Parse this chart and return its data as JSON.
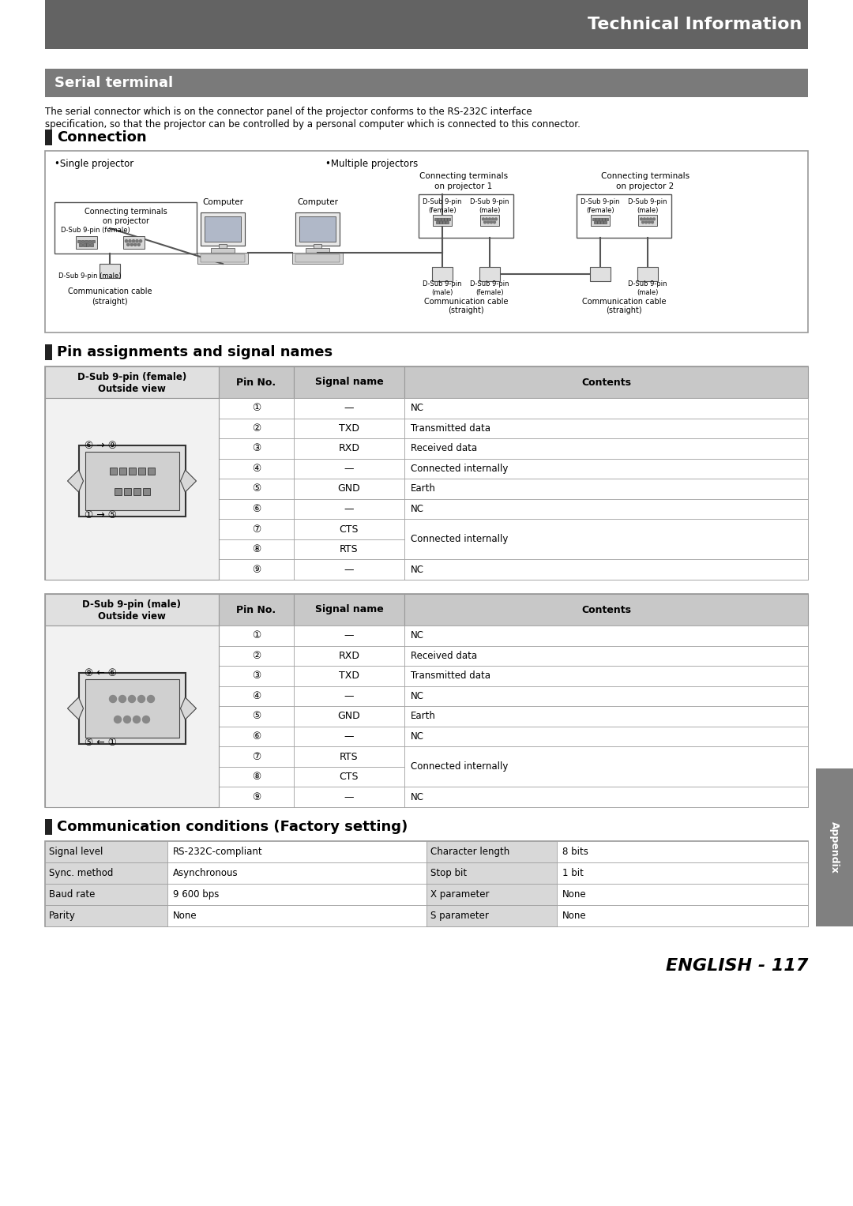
{
  "title_header": "Technical Information",
  "section1_title": "Serial terminal",
  "intro_line1": "The serial connector which is on the connector panel of the projector conforms to the RS-232C interface",
  "intro_line2": "specification, so that the projector can be controlled by a personal computer which is connected to this connector.",
  "connection_title": "Connection",
  "pin_title": "Pin assignments and signal names",
  "comm_title": "Communication conditions (Factory setting)",
  "female_table_title": "D-Sub 9-pin (female)\nOutside view",
  "male_table_title": "D-Sub 9-pin (male)\nOutside view",
  "table_headers": [
    "Pin No.",
    "Signal name",
    "Contents"
  ],
  "female_rows": [
    [
      "①",
      "—",
      "NC"
    ],
    [
      "②",
      "TXD",
      "Transmitted data"
    ],
    [
      "③",
      "RXD",
      "Received data"
    ],
    [
      "④",
      "—",
      "Connected internally"
    ],
    [
      "⑤",
      "GND",
      "Earth"
    ],
    [
      "⑥",
      "—",
      "NC"
    ],
    [
      "⑦",
      "CTS",
      "Connected internally"
    ],
    [
      "⑧",
      "RTS",
      "Connected internally"
    ],
    [
      "⑨",
      "—",
      "NC"
    ]
  ],
  "male_rows": [
    [
      "①",
      "—",
      "NC"
    ],
    [
      "②",
      "RXD",
      "Received data"
    ],
    [
      "③",
      "TXD",
      "Transmitted data"
    ],
    [
      "④",
      "—",
      "NC"
    ],
    [
      "⑤",
      "GND",
      "Earth"
    ],
    [
      "⑥",
      "—",
      "NC"
    ],
    [
      "⑦",
      "RTS",
      "Connected internally"
    ],
    [
      "⑧",
      "CTS",
      "Connected internally"
    ],
    [
      "⑨",
      "—",
      "NC"
    ]
  ],
  "comm_left": [
    [
      "Signal level",
      "RS-232C-compliant"
    ],
    [
      "Sync. method",
      "Asynchronous"
    ],
    [
      "Baud rate",
      "9 600 bps"
    ],
    [
      "Parity",
      "None"
    ]
  ],
  "comm_right": [
    [
      "Character length",
      "8 bits"
    ],
    [
      "Stop bit",
      "1 bit"
    ],
    [
      "X parameter",
      "None"
    ],
    [
      "S parameter",
      "None"
    ]
  ],
  "header_bg": "#636363",
  "header_fg": "#ffffff",
  "section_bg": "#7a7a7a",
  "section_fg": "#ffffff",
  "table_header_bg": "#c8c8c8",
  "border_color": "#999999",
  "page_bg": "#ffffff",
  "appendix_bg": "#808080",
  "appendix_fg": "#ffffff",
  "page_number": "ENGLISH - 117",
  "female_annot_top": "⑥ → ⑨",
  "female_annot_bot": "① → ⑤",
  "male_annot_top": "⑨ ← ⑥",
  "male_annot_bot": "⑤ ← ①"
}
